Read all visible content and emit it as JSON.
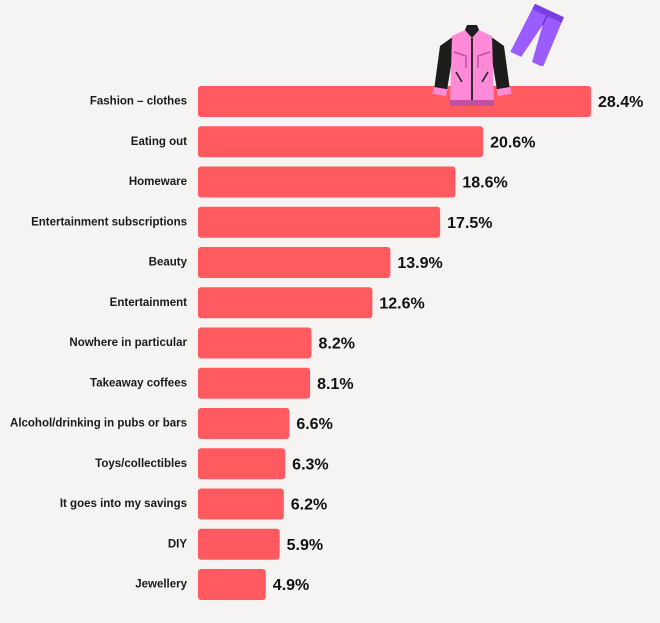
{
  "colors": {
    "bar": "#ff5a5f",
    "background": "#f6f4f2",
    "jacket_body": "#ff8ad8",
    "jacket_sleeve": "#1d1d1d",
    "pants": "#9b5cff"
  },
  "icons": {
    "jacket": "pink-jacket-icon",
    "pants": "purple-pants-icon"
  },
  "chart_data": {
    "type": "bar",
    "orientation": "horizontal",
    "title": "",
    "xlabel": "",
    "ylabel": "",
    "xlim": [
      0,
      28.4
    ],
    "grid": false,
    "categories": [
      "Fashion – clothes",
      "Eating out",
      "Homeware",
      "Entertainment subscriptions",
      "Beauty",
      "Entertainment",
      "Nowhere in particular",
      "Takeaway coffees",
      "Alcohol/drinking in pubs or bars",
      "Toys/collectibles",
      "It goes into my savings",
      "DIY",
      "Jewellery"
    ],
    "values": [
      28.4,
      20.6,
      18.6,
      17.5,
      13.9,
      12.6,
      8.2,
      8.1,
      6.6,
      6.3,
      6.2,
      5.9,
      4.9
    ],
    "value_labels": [
      "28.4%",
      "20.6%",
      "18.6%",
      "17.5%",
      "13.9%",
      "12.6%",
      "8.2%",
      "8.1%",
      "6.6%",
      "6.3%",
      "6.2%",
      "5.9%",
      "4.9%"
    ]
  }
}
